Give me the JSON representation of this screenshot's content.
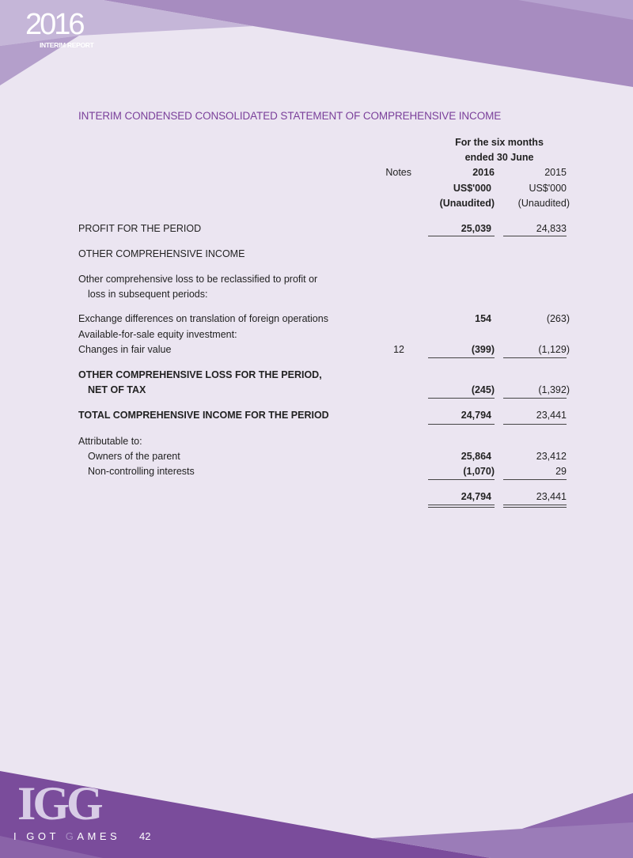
{
  "header": {
    "year": "2016",
    "subtitle": "INTERIM REPORT"
  },
  "title": "INTERIM CONDENSED CONSOLIDATED STATEMENT OF COMPREHENSIVE INCOME",
  "columns": {
    "period_line1": "For the six months",
    "period_line2": "ended 30 June",
    "notes": "Notes",
    "y2016": "2016",
    "y2015": "2015",
    "unit2016": "US$'000",
    "unit2015": "US$'000",
    "status2016": "(Unaudited)",
    "status2015": "(Unaudited)"
  },
  "rows": {
    "profit": {
      "label": "PROFIT FOR THE PERIOD",
      "v2016": "25,039",
      "v2015": "24,833"
    },
    "oci_heading": {
      "label": "OTHER COMPREHENSIVE INCOME"
    },
    "reclass": {
      "label1": "Other comprehensive loss to be reclassified to profit or",
      "label2": "loss in subsequent periods:"
    },
    "exchange": {
      "label": "Exchange differences on translation of foreign operations",
      "v2016": "154",
      "v2015": "(263)"
    },
    "afs": {
      "label": "Available-for-sale equity investment:"
    },
    "fair_value": {
      "label": "Changes in fair value",
      "note": "12",
      "v2016": "(399)",
      "v2015": "(1,129)"
    },
    "ocl": {
      "label1": "OTHER COMPREHENSIVE LOSS FOR THE PERIOD,",
      "label2": "NET OF TAX",
      "v2016": "(245)",
      "v2015": "(1,392)"
    },
    "total": {
      "label": "TOTAL COMPREHENSIVE INCOME FOR THE PERIOD",
      "v2016": "24,794",
      "v2015": "23,441"
    },
    "attrib": {
      "label": "Attributable to:"
    },
    "owners": {
      "label": "Owners of the parent",
      "v2016": "25,864",
      "v2015": "23,412"
    },
    "nci": {
      "label": "Non-controlling interests",
      "v2016": "(1,070)",
      "v2015": "29"
    },
    "sum": {
      "v2016": "24,794",
      "v2015": "23,441"
    }
  },
  "footer": {
    "logo": "IGG",
    "tagline_a": "I GOT ",
    "tagline_g": "G",
    "tagline_b": "AMES",
    "page": "42"
  },
  "colors": {
    "accent": "#7a3f9a",
    "band_dark": "#7a4c9b",
    "band_mid": "#a78cc0",
    "background": "#ebe5f1"
  }
}
